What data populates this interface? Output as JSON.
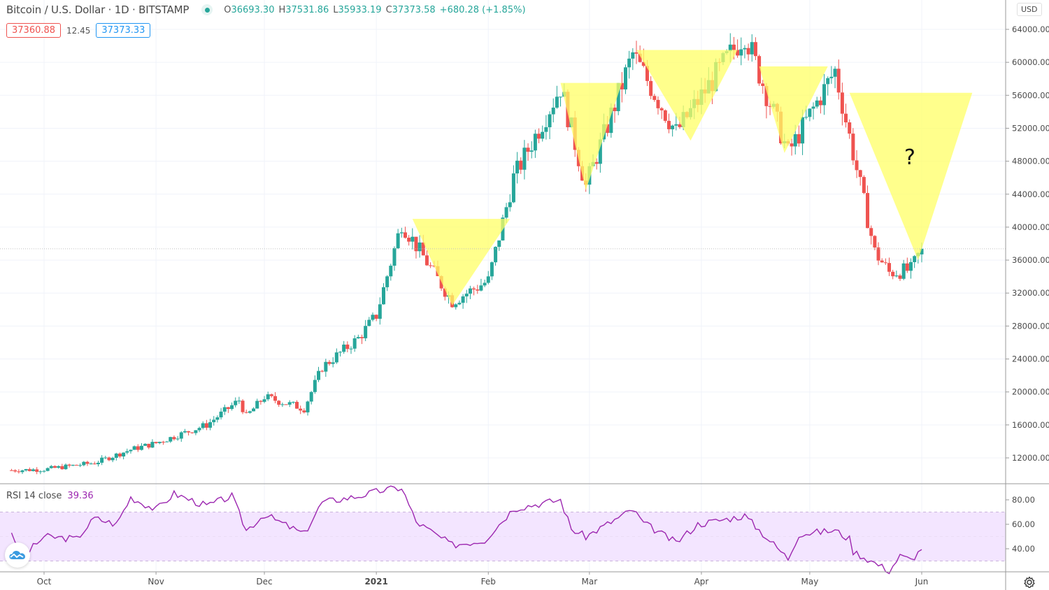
{
  "header": {
    "symbol_title": "Bitcoin / U.S. Dollar · 1D · BITSTAMP",
    "status_icon": "market-open-dot-icon",
    "ohlc": {
      "open_label": "O",
      "open": "36693.30",
      "high_label": "H",
      "high": "37531.86",
      "low_label": "L",
      "low": "35933.19",
      "close_label": "C",
      "close": "37373.58",
      "change": "+680.28 (+1.85%)"
    },
    "bid": "37360.88",
    "spread": "12.45",
    "ask": "37373.33"
  },
  "price_axis": {
    "currency": "USD",
    "ticks": [
      "64000.00",
      "60000.00",
      "56000.00",
      "52000.00",
      "48000.00",
      "44000.00",
      "40000.00",
      "36000.00",
      "32000.00",
      "28000.00",
      "24000.00",
      "20000.00",
      "16000.00",
      "12000.00"
    ]
  },
  "rsi": {
    "label": "RSI 14 close",
    "value": "39.36",
    "ticks": [
      "80.00",
      "60.00",
      "40.00"
    ]
  },
  "time_axis": {
    "ticks": [
      "Oct",
      "Nov",
      "Dec",
      "2021",
      "Feb",
      "Mar",
      "Apr",
      "May",
      "Jun"
    ]
  },
  "annotation": {
    "question_mark": "?"
  },
  "colors": {
    "up": "#26a69a",
    "down": "#ef5350",
    "rsi_line": "#9c27b0",
    "rsi_band": "#f3e5ff",
    "triangle": "#ffff66"
  },
  "chart_data": [
    {
      "type": "candlestick",
      "title": "Bitcoin / U.S. Dollar · 1D · BITSTAMP",
      "ylabel": "USD",
      "ylim": [
        9000,
        65500
      ],
      "x_ticks": [
        "Oct",
        "Nov",
        "Dec",
        "2021",
        "Feb",
        "Mar",
        "Apr",
        "May",
        "Jun"
      ],
      "last_candle": {
        "open": 36693.3,
        "high": 37531.86,
        "low": 35933.19,
        "close": 37373.58,
        "change": 680.28,
        "change_pct": 1.85
      },
      "approx_close_path": [
        {
          "date": "2020-09-22",
          "close": 10500
        },
        {
          "date": "2020-10-01",
          "close": 10600
        },
        {
          "date": "2020-10-15",
          "close": 11400
        },
        {
          "date": "2020-10-25",
          "close": 13000
        },
        {
          "date": "2020-11-01",
          "close": 13800
        },
        {
          "date": "2020-11-15",
          "close": 16000
        },
        {
          "date": "2020-11-24",
          "close": 19000
        },
        {
          "date": "2020-11-26",
          "close": 17000
        },
        {
          "date": "2020-12-01",
          "close": 19400
        },
        {
          "date": "2020-12-12",
          "close": 18000
        },
        {
          "date": "2020-12-17",
          "close": 23000
        },
        {
          "date": "2020-12-27",
          "close": 26500
        },
        {
          "date": "2021-01-01",
          "close": 29300
        },
        {
          "date": "2021-01-08",
          "close": 40500
        },
        {
          "date": "2021-01-22",
          "close": 31000
        },
        {
          "date": "2021-02-01",
          "close": 33500
        },
        {
          "date": "2021-02-08",
          "close": 46000
        },
        {
          "date": "2021-02-21",
          "close": 57000
        },
        {
          "date": "2021-02-28",
          "close": 45000
        },
        {
          "date": "2021-03-13",
          "close": 61000
        },
        {
          "date": "2021-03-25",
          "close": 51500
        },
        {
          "date": "2021-04-13",
          "close": 63500
        },
        {
          "date": "2021-04-25",
          "close": 49000
        },
        {
          "date": "2021-05-08",
          "close": 59000
        },
        {
          "date": "2021-05-19",
          "close": 37000
        },
        {
          "date": "2021-05-23",
          "close": 34500
        },
        {
          "date": "2021-05-29",
          "close": 34800
        },
        {
          "date": "2021-06-01",
          "close": 37373
        }
      ],
      "annotations": [
        {
          "type": "inverted-triangle",
          "top_left": [
            "2021-01-11",
            41000
          ],
          "top_right": [
            "2021-02-07",
            41000
          ],
          "bottom": [
            "2021-01-22",
            30500
          ]
        },
        {
          "type": "inverted-triangle",
          "top_left": [
            "2021-02-21",
            57500
          ],
          "top_right": [
            "2021-03-10",
            57500
          ],
          "bottom": [
            "2021-02-28",
            44500
          ]
        },
        {
          "type": "inverted-triangle",
          "top_left": [
            "2021-03-14",
            61500
          ],
          "top_right": [
            "2021-04-11",
            61500
          ],
          "bottom": [
            "2021-03-29",
            50500
          ]
        },
        {
          "type": "inverted-triangle",
          "top_left": [
            "2021-04-17",
            59500
          ],
          "top_right": [
            "2021-05-06",
            59500
          ],
          "bottom": [
            "2021-04-24",
            49000
          ]
        },
        {
          "type": "inverted-triangle",
          "top_left": [
            "2021-05-12",
            56300
          ],
          "top_right": [
            "2021-06-15",
            56300
          ],
          "bottom": [
            "2021-05-31",
            36000
          ],
          "label": "?"
        }
      ],
      "grid": true
    },
    {
      "type": "line",
      "title": "RSI 14 close",
      "current_value": 39.36,
      "ylim": [
        17,
        92
      ],
      "bands": {
        "upper": 70,
        "lower": 30
      },
      "y_ticks": [
        80,
        60,
        40
      ],
      "approx_points": [
        {
          "date": "2020-09-22",
          "value": 54
        },
        {
          "date": "2020-09-25",
          "value": 33
        },
        {
          "date": "2020-10-01",
          "value": 50
        },
        {
          "date": "2020-10-10",
          "value": 48
        },
        {
          "date": "2020-10-15",
          "value": 65
        },
        {
          "date": "2020-10-21",
          "value": 60
        },
        {
          "date": "2020-10-25",
          "value": 82
        },
        {
          "date": "2020-11-01",
          "value": 72
        },
        {
          "date": "2020-11-06",
          "value": 85
        },
        {
          "date": "2020-11-15",
          "value": 75
        },
        {
          "date": "2020-11-22",
          "value": 83
        },
        {
          "date": "2020-11-26",
          "value": 55
        },
        {
          "date": "2020-12-01",
          "value": 68
        },
        {
          "date": "2020-12-12",
          "value": 52
        },
        {
          "date": "2020-12-17",
          "value": 78
        },
        {
          "date": "2020-12-27",
          "value": 83
        },
        {
          "date": "2021-01-03",
          "value": 88
        },
        {
          "date": "2021-01-08",
          "value": 90
        },
        {
          "date": "2021-01-12",
          "value": 62
        },
        {
          "date": "2021-01-22",
          "value": 43
        },
        {
          "date": "2021-01-31",
          "value": 47
        },
        {
          "date": "2021-02-08",
          "value": 73
        },
        {
          "date": "2021-02-21",
          "value": 80
        },
        {
          "date": "2021-02-24",
          "value": 56
        },
        {
          "date": "2021-02-28",
          "value": 50
        },
        {
          "date": "2021-03-13",
          "value": 72
        },
        {
          "date": "2021-03-16",
          "value": 61
        },
        {
          "date": "2021-03-25",
          "value": 45
        },
        {
          "date": "2021-03-31",
          "value": 60
        },
        {
          "date": "2021-04-13",
          "value": 67
        },
        {
          "date": "2021-04-25",
          "value": 32
        },
        {
          "date": "2021-04-28",
          "value": 52
        },
        {
          "date": "2021-05-08",
          "value": 55
        },
        {
          "date": "2021-05-12",
          "value": 48
        },
        {
          "date": "2021-05-13",
          "value": 38
        },
        {
          "date": "2021-05-23",
          "value": 22
        },
        {
          "date": "2021-05-26",
          "value": 34
        },
        {
          "date": "2021-05-29",
          "value": 31
        },
        {
          "date": "2021-06-01",
          "value": 39.36
        }
      ]
    }
  ]
}
